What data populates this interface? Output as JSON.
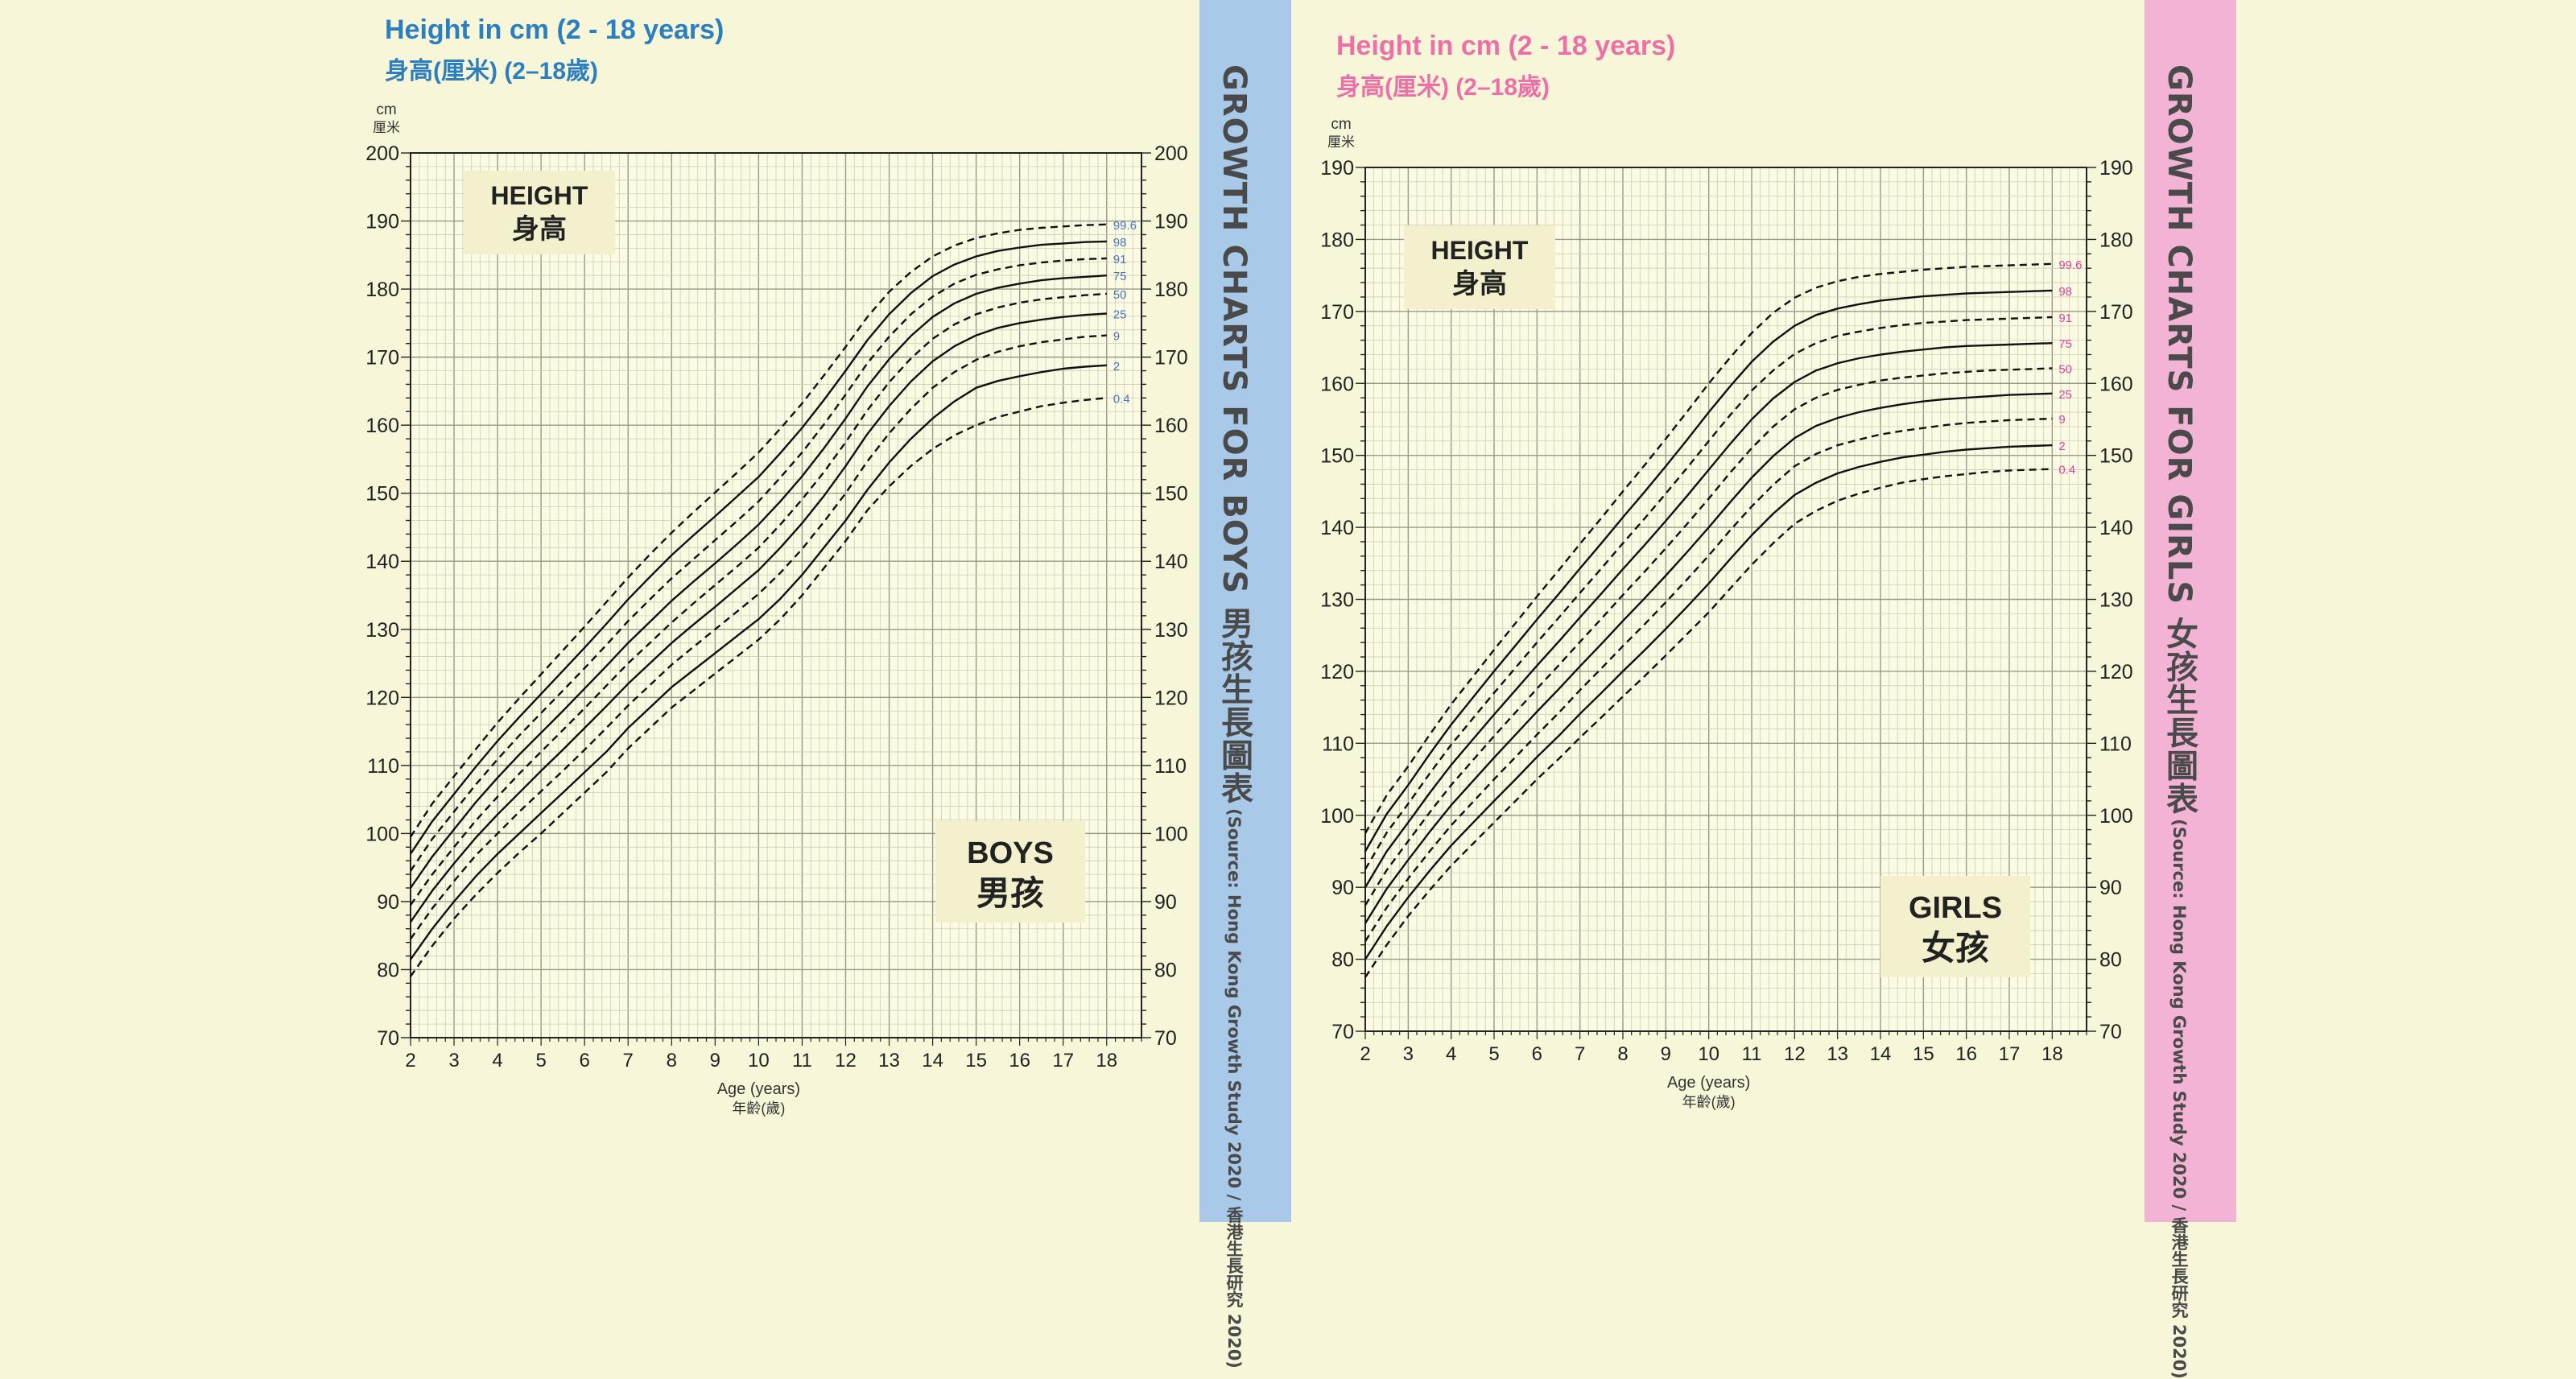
{
  "boys": {
    "title_en": "Height in cm (2 - 18 years)",
    "title_zh": "身高(厘米) (2–18歲)",
    "side_title": "GROWTH CHARTS FOR BOYS 男孩生長圖表",
    "side_source": "(Source: Hong Kong Growth Study 2020 / 香港生長研究 2020)",
    "colors": {
      "title": "#2b7fbf",
      "band": "#a9c9e9",
      "percentile_label": "#4a78c2"
    },
    "chart_data": {
      "type": "line",
      "unit_top": "cm",
      "unit_top_zh": "厘米",
      "label_en": "HEIGHT",
      "label_zh": "身高",
      "sex_en": "BOYS",
      "sex_zh": "男孩",
      "xlabel": "Age (years)",
      "xlabel_zh": "年齡(歲)",
      "xlim": [
        2,
        18.8
      ],
      "ylim": [
        70,
        200
      ],
      "xticks": [
        2,
        3,
        4,
        5,
        6,
        7,
        8,
        9,
        10,
        11,
        12,
        13,
        14,
        15,
        16,
        17,
        18
      ],
      "yticks": [
        70,
        80,
        90,
        100,
        110,
        120,
        130,
        140,
        150,
        160,
        170,
        180,
        190,
        200
      ],
      "grid": true,
      "x": [
        2,
        2.5,
        3,
        3.5,
        4,
        4.5,
        5,
        5.5,
        6,
        6.5,
        7,
        7.5,
        8,
        8.5,
        9,
        9.5,
        10,
        10.5,
        11,
        11.5,
        12,
        12.5,
        13,
        13.5,
        14,
        14.5,
        15,
        15.5,
        16,
        16.5,
        17,
        17.5,
        18
      ],
      "series": [
        {
          "name": "0.4",
          "style": "dashed",
          "values": [
            79,
            83.5,
            87.5,
            91,
            94.2,
            97.2,
            100,
            103,
            106,
            109,
            112.5,
            115.5,
            118.5,
            121,
            123.5,
            126,
            128.5,
            131.5,
            135,
            139,
            143,
            147.5,
            151,
            154,
            156.5,
            158.5,
            160,
            161.2,
            162,
            162.8,
            163.3,
            163.7,
            164
          ]
        },
        {
          "name": "2",
          "style": "solid",
          "values": [
            81.5,
            86,
            90,
            93.7,
            97,
            100,
            103,
            106,
            109,
            112,
            115.5,
            118.5,
            121.5,
            124,
            126.5,
            129,
            131.5,
            134.5,
            138,
            142,
            146,
            150.5,
            154.5,
            158,
            161,
            163.5,
            165.5,
            166.5,
            167.2,
            167.8,
            168.3,
            168.6,
            168.8
          ]
        },
        {
          "name": "9",
          "style": "dashed",
          "values": [
            84.5,
            89,
            93,
            96.8,
            100,
            103.2,
            106.2,
            109.2,
            112.3,
            115.5,
            118.8,
            121.8,
            124.8,
            127.4,
            130,
            132.6,
            135.2,
            138.3,
            141.8,
            145.8,
            150,
            154.7,
            158.8,
            162.4,
            165.5,
            167.8,
            169.6,
            170.8,
            171.6,
            172.2,
            172.6,
            173,
            173.2
          ]
        },
        {
          "name": "25",
          "style": "solid",
          "values": [
            87,
            91.6,
            95.6,
            99.4,
            102.8,
            106,
            109.2,
            112.3,
            115.5,
            118.7,
            122,
            125,
            128,
            130.7,
            133.3,
            136,
            138.7,
            142,
            145.6,
            149.6,
            154,
            158.7,
            162.8,
            166.4,
            169.4,
            171.6,
            173.2,
            174.3,
            175,
            175.5,
            175.9,
            176.2,
            176.4
          ]
        },
        {
          "name": "50",
          "style": "dashed",
          "values": [
            89.5,
            94,
            98,
            101.9,
            105.4,
            108.8,
            112,
            115.2,
            118.4,
            121.7,
            125,
            128,
            131,
            133.8,
            136.5,
            139.2,
            142,
            145.4,
            149.1,
            153.1,
            157.5,
            162.2,
            166.3,
            169.8,
            172.7,
            174.8,
            176.3,
            177.3,
            178,
            178.5,
            178.8,
            179.1,
            179.3
          ]
        },
        {
          "name": "75",
          "style": "solid",
          "values": [
            92,
            96.6,
            100.6,
            104.6,
            108.2,
            111.6,
            114.8,
            118,
            121.3,
            124.6,
            128,
            131.1,
            134.2,
            137,
            139.7,
            142.5,
            145.4,
            148.8,
            152.5,
            156.6,
            161,
            165.7,
            169.7,
            173.1,
            175.9,
            177.9,
            179.3,
            180.2,
            180.8,
            181.3,
            181.6,
            181.8,
            182
          ]
        },
        {
          "name": "91",
          "style": "dashed",
          "values": [
            94.5,
            99.2,
            103.2,
            107.2,
            110.9,
            114.4,
            117.7,
            121,
            124.3,
            127.7,
            131.2,
            134.4,
            137.5,
            140.3,
            143.1,
            145.9,
            148.8,
            152.3,
            156,
            160.1,
            164.5,
            169.1,
            173,
            176.3,
            178.9,
            180.8,
            182.1,
            182.9,
            183.5,
            183.9,
            184.2,
            184.4,
            184.5
          ]
        },
        {
          "name": "98",
          "style": "solid",
          "values": [
            97,
            101.8,
            105.8,
            109.8,
            113.6,
            117.1,
            120.5,
            123.9,
            127.3,
            130.8,
            134.4,
            137.7,
            140.9,
            143.8,
            146.6,
            149.5,
            152.4,
            155.9,
            159.6,
            163.7,
            168,
            172.5,
            176.3,
            179.4,
            181.9,
            183.6,
            184.8,
            185.6,
            186.1,
            186.5,
            186.7,
            186.9,
            187
          ]
        },
        {
          "name": "99.6",
          "style": "dashed",
          "values": [
            99.5,
            104.4,
            108.4,
            112.4,
            116.3,
            119.9,
            123.4,
            126.9,
            130.4,
            134,
            137.6,
            141,
            144.2,
            147.2,
            150.1,
            153,
            156,
            159.5,
            163.2,
            167.3,
            171.5,
            175.9,
            179.6,
            182.5,
            184.8,
            186.4,
            187.5,
            188.2,
            188.7,
            189,
            189.2,
            189.4,
            189.5
          ]
        }
      ]
    }
  },
  "girls": {
    "title_en": "Height in cm (2 - 18 years)",
    "title_zh": "身高(厘米) (2–18歲)",
    "side_title": "GROWTH CHARTS FOR GIRLS 女孩生長圖表",
    "side_source": "(Source: Hong Kong Growth Study 2020 / 香港生長研究 2020)",
    "colors": {
      "title": "#ec6fa8",
      "band": "#f2b3d4",
      "percentile_label": "#d9449a"
    },
    "chart_data": {
      "type": "line",
      "unit_top": "cm",
      "unit_top_zh": "厘米",
      "label_en": "HEIGHT",
      "label_zh": "身高",
      "sex_en": "GIRLS",
      "sex_zh": "女孩",
      "xlabel": "Age (years)",
      "xlabel_zh": "年齡(歲)",
      "xlim": [
        2,
        18.8
      ],
      "ylim": [
        70,
        190
      ],
      "xticks": [
        2,
        3,
        4,
        5,
        6,
        7,
        8,
        9,
        10,
        11,
        12,
        13,
        14,
        15,
        16,
        17,
        18
      ],
      "yticks": [
        70,
        80,
        90,
        100,
        110,
        120,
        130,
        140,
        150,
        160,
        170,
        180,
        190
      ],
      "grid": true,
      "x": [
        2,
        2.5,
        3,
        3.5,
        4,
        4.5,
        5,
        5.5,
        6,
        6.5,
        7,
        7.5,
        8,
        8.5,
        9,
        9.5,
        10,
        10.5,
        11,
        11.5,
        12,
        12.5,
        13,
        13.5,
        14,
        14.5,
        15,
        15.5,
        16,
        16.5,
        17,
        17.5,
        18
      ],
      "series": [
        {
          "name": "0.4",
          "style": "dashed",
          "values": [
            77.5,
            82,
            86,
            89.6,
            93,
            96,
            99,
            102,
            105,
            107.8,
            110.8,
            113.6,
            116.5,
            119.3,
            122.2,
            125.2,
            128.2,
            131.5,
            134.8,
            137.8,
            140.5,
            142.3,
            143.7,
            144.7,
            145.5,
            146.2,
            146.7,
            147.1,
            147.4,
            147.7,
            147.9,
            148,
            148.1
          ]
        },
        {
          "name": "2",
          "style": "solid",
          "values": [
            80,
            84.6,
            88.6,
            92.3,
            95.8,
            98.9,
            102,
            105,
            108.1,
            111,
            114.1,
            117,
            120,
            122.9,
            125.9,
            129,
            132.2,
            135.6,
            138.9,
            141.9,
            144.5,
            146.2,
            147.5,
            148.4,
            149.1,
            149.7,
            150.1,
            150.5,
            150.8,
            151,
            151.2,
            151.3,
            151.4
          ]
        },
        {
          "name": "9",
          "style": "dashed",
          "values": [
            82.5,
            87.2,
            91.2,
            95,
            98.6,
            101.8,
            105,
            108.1,
            111.2,
            114.2,
            117.4,
            120.4,
            123.5,
            126.5,
            129.6,
            132.8,
            136.1,
            139.6,
            142.9,
            145.9,
            148.5,
            150.2,
            151.4,
            152.2,
            152.9,
            153.4,
            153.8,
            154.2,
            154.5,
            154.7,
            154.9,
            155,
            155.1
          ]
        },
        {
          "name": "25",
          "style": "solid",
          "values": [
            85,
            89.8,
            93.8,
            97.7,
            101.4,
            104.7,
            108,
            111.2,
            114.4,
            117.5,
            120.7,
            123.8,
            127,
            130.1,
            133.3,
            136.6,
            140,
            143.5,
            146.9,
            149.9,
            152.4,
            154.1,
            155.2,
            156,
            156.6,
            157.1,
            157.5,
            157.8,
            158,
            158.2,
            158.4,
            158.5,
            158.6
          ]
        },
        {
          "name": "50",
          "style": "dashed",
          "values": [
            87.5,
            92.4,
            96.4,
            100.4,
            104.2,
            107.6,
            111,
            114.3,
            117.6,
            120.8,
            124.1,
            127.3,
            130.6,
            133.8,
            137.1,
            140.5,
            144,
            147.6,
            151,
            154,
            156.4,
            158,
            159.1,
            159.8,
            160.4,
            160.8,
            161.1,
            161.4,
            161.6,
            161.8,
            161.9,
            162,
            162.1
          ]
        },
        {
          "name": "75",
          "style": "solid",
          "values": [
            90,
            95,
            99,
            103.1,
            107,
            110.5,
            114,
            117.4,
            120.8,
            124.1,
            127.5,
            130.8,
            134.2,
            137.5,
            140.9,
            144.4,
            148,
            151.6,
            155,
            157.9,
            160.2,
            161.8,
            162.8,
            163.5,
            164,
            164.4,
            164.7,
            165,
            165.2,
            165.3,
            165.4,
            165.5,
            165.6
          ]
        },
        {
          "name": "91",
          "style": "dashed",
          "values": [
            92.5,
            97.6,
            101.6,
            105.8,
            109.8,
            113.4,
            117,
            120.5,
            124,
            127.4,
            130.9,
            134.3,
            137.8,
            141.2,
            144.7,
            148.3,
            152,
            155.6,
            159,
            161.8,
            164.1,
            165.6,
            166.6,
            167.2,
            167.7,
            168.1,
            168.4,
            168.6,
            168.8,
            168.9,
            169,
            169.1,
            169.2
          ]
        },
        {
          "name": "98",
          "style": "solid",
          "values": [
            95,
            100.2,
            104.2,
            108.5,
            112.6,
            116.3,
            120,
            123.6,
            127.2,
            130.7,
            134.3,
            137.8,
            141.4,
            144.9,
            148.5,
            152.2,
            156,
            159.6,
            163,
            165.8,
            168,
            169.5,
            170.4,
            171,
            171.5,
            171.8,
            172.1,
            172.3,
            172.5,
            172.6,
            172.7,
            172.8,
            172.9
          ]
        },
        {
          "name": "99.6",
          "style": "dashed",
          "values": [
            97.5,
            102.8,
            106.8,
            111.2,
            115.4,
            119.2,
            123,
            126.7,
            130.4,
            134,
            137.7,
            141.3,
            145,
            148.6,
            152.3,
            156.1,
            160,
            163.6,
            167,
            169.8,
            171.9,
            173.3,
            174.2,
            174.8,
            175.2,
            175.5,
            175.8,
            176,
            176.2,
            176.3,
            176.4,
            176.5,
            176.6
          ]
        }
      ]
    }
  }
}
